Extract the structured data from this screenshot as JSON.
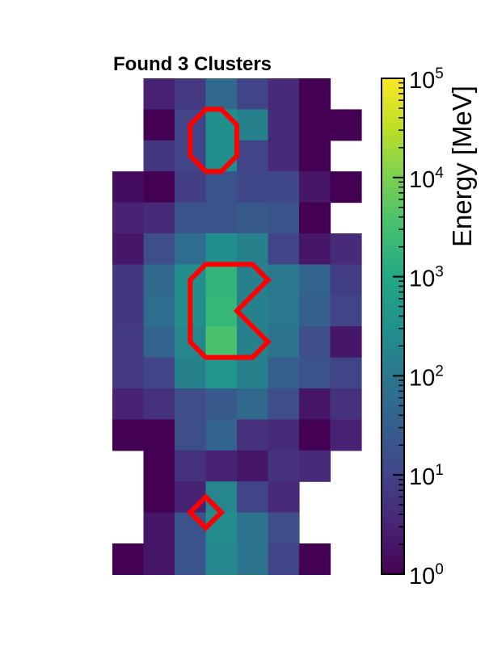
{
  "chart_data": {
    "type": "heatmap",
    "title": "Found 3 Clusters",
    "colorbar": {
      "label": "Energy [MeV]",
      "scale": "log",
      "range": [
        1,
        100000
      ],
      "colormap": "viridis",
      "ticks": [
        {
          "base": "10",
          "exp": "0"
        },
        {
          "base": "10",
          "exp": "1"
        },
        {
          "base": "10",
          "exp": "2"
        },
        {
          "base": "10",
          "exp": "3"
        },
        {
          "base": "10",
          "exp": "4"
        },
        {
          "base": "10",
          "exp": "5"
        }
      ]
    },
    "grid": {
      "columns": 8,
      "rows": 16,
      "values": [
        [
          null,
          3,
          7,
          50,
          10,
          4,
          1,
          null
        ],
        [
          null,
          1,
          10,
          300,
          150,
          4,
          1,
          1
        ],
        [
          null,
          6,
          10,
          300,
          10,
          4,
          1,
          null
        ],
        [
          1.5,
          1,
          8,
          20,
          12,
          12,
          2,
          1
        ],
        [
          3,
          4,
          20,
          20,
          25,
          20,
          1,
          null
        ],
        [
          2,
          15,
          60,
          300,
          150,
          10,
          2,
          4
        ],
        [
          6,
          50,
          250,
          1800,
          150,
          100,
          40,
          8
        ],
        [
          6,
          60,
          250,
          2000,
          150,
          100,
          30,
          10
        ],
        [
          7,
          40,
          200,
          3500,
          150,
          80,
          15,
          2
        ],
        [
          7,
          10,
          150,
          400,
          150,
          30,
          20,
          10
        ],
        [
          3,
          5,
          15,
          25,
          50,
          15,
          2,
          5
        ],
        [
          1,
          1,
          15,
          40,
          5,
          4,
          1,
          3
        ],
        [
          null,
          1,
          5,
          3,
          2,
          5,
          4,
          null
        ],
        [
          null,
          1,
          3,
          200,
          10,
          4,
          null,
          null
        ],
        [
          null,
          2,
          20,
          250,
          80,
          15,
          null,
          null
        ],
        [
          1,
          2,
          20,
          200,
          80,
          10,
          1,
          null
        ]
      ]
    },
    "cluster_outline_color": "#ff0000",
    "clusters": [
      {
        "vertices": [
          [
            3,
            1
          ],
          [
            3.5,
            1
          ],
          [
            4,
            1.5
          ],
          [
            4,
            2.5
          ],
          [
            3.5,
            3
          ],
          [
            3,
            3
          ],
          [
            2.5,
            2.5
          ],
          [
            2.5,
            1.5
          ]
        ]
      },
      {
        "vertices": [
          [
            3,
            6
          ],
          [
            4.5,
            6
          ],
          [
            5,
            6.5
          ],
          [
            4,
            7.5
          ],
          [
            5,
            8.5
          ],
          [
            4.5,
            9
          ],
          [
            3,
            9
          ],
          [
            2.5,
            8.5
          ],
          [
            2.5,
            6.5
          ]
        ]
      },
      {
        "vertices": [
          [
            3,
            13.5
          ],
          [
            3.5,
            14
          ],
          [
            3,
            14.5
          ],
          [
            2.5,
            14
          ]
        ]
      }
    ]
  }
}
